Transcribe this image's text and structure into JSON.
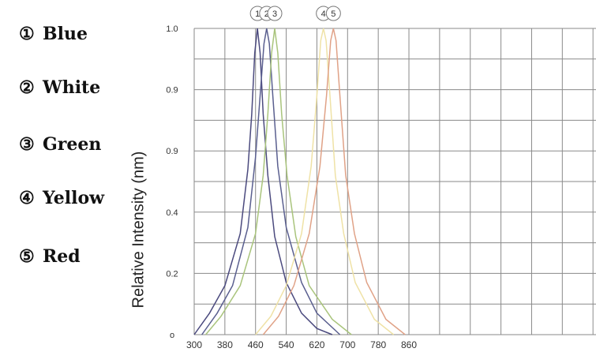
{
  "legend": {
    "items": [
      {
        "num": "①",
        "label": "Blue"
      },
      {
        "num": "②",
        "label": "White"
      },
      {
        "num": "③",
        "label": "Green"
      },
      {
        "num": "④",
        "label": "Yellow"
      },
      {
        "num": "⑤",
        "label": "Red"
      }
    ]
  },
  "chart_data": {
    "type": "line",
    "title": "",
    "xlabel": "",
    "ylabel": "Relative Intensity (nm)",
    "x_ticks": [
      "300",
      "380",
      "460",
      "540",
      "620",
      "700",
      "780",
      "860"
    ],
    "y_ticks": [
      "o",
      "0.2",
      "0.4",
      "0.9",
      "0.9",
      "1.0"
    ],
    "xlim": [
      300,
      860
    ],
    "grid": true,
    "series": [
      {
        "name": "1",
        "color": "#4b4a7e",
        "points": [
          [
            300,
            0.0
          ],
          [
            340,
            0.07
          ],
          [
            380,
            0.16
          ],
          [
            420,
            0.33
          ],
          [
            440,
            0.54
          ],
          [
            450,
            0.72
          ],
          [
            458,
            0.92
          ],
          [
            465,
            1.0
          ],
          [
            472,
            0.92
          ],
          [
            480,
            0.72
          ],
          [
            492,
            0.52
          ],
          [
            510,
            0.32
          ],
          [
            540,
            0.17
          ],
          [
            580,
            0.07
          ],
          [
            620,
            0.02
          ],
          [
            660,
            0.0
          ]
        ]
      },
      {
        "name": "2",
        "color": "#5a5f8f",
        "points": [
          [
            320,
            0.0
          ],
          [
            360,
            0.07
          ],
          [
            400,
            0.16
          ],
          [
            440,
            0.35
          ],
          [
            460,
            0.58
          ],
          [
            472,
            0.78
          ],
          [
            482,
            0.95
          ],
          [
            489,
            1.0
          ],
          [
            496,
            0.95
          ],
          [
            505,
            0.78
          ],
          [
            518,
            0.55
          ],
          [
            540,
            0.35
          ],
          [
            580,
            0.17
          ],
          [
            620,
            0.07
          ],
          [
            680,
            0.0
          ]
        ]
      },
      {
        "name": "3",
        "color": "#a9c47c",
        "points": [
          [
            330,
            0.0
          ],
          [
            370,
            0.06
          ],
          [
            420,
            0.16
          ],
          [
            460,
            0.33
          ],
          [
            480,
            0.52
          ],
          [
            492,
            0.72
          ],
          [
            502,
            0.92
          ],
          [
            510,
            1.0
          ],
          [
            518,
            0.92
          ],
          [
            528,
            0.72
          ],
          [
            542,
            0.52
          ],
          [
            565,
            0.32
          ],
          [
            600,
            0.16
          ],
          [
            660,
            0.05
          ],
          [
            710,
            0.0
          ]
        ]
      },
      {
        "name": "4",
        "color": "#efe2a6",
        "points": [
          [
            460,
            0.0
          ],
          [
            500,
            0.06
          ],
          [
            540,
            0.16
          ],
          [
            580,
            0.33
          ],
          [
            605,
            0.55
          ],
          [
            620,
            0.78
          ],
          [
            630,
            0.96
          ],
          [
            637,
            1.0
          ],
          [
            644,
            0.96
          ],
          [
            654,
            0.78
          ],
          [
            668,
            0.52
          ],
          [
            690,
            0.33
          ],
          [
            720,
            0.17
          ],
          [
            770,
            0.05
          ],
          [
            820,
            0.0
          ]
        ]
      },
      {
        "name": "5",
        "color": "#e0a287",
        "points": [
          [
            480,
            0.0
          ],
          [
            520,
            0.06
          ],
          [
            560,
            0.16
          ],
          [
            600,
            0.33
          ],
          [
            628,
            0.55
          ],
          [
            645,
            0.78
          ],
          [
            656,
            0.96
          ],
          [
            663,
            1.0
          ],
          [
            670,
            0.96
          ],
          [
            680,
            0.78
          ],
          [
            695,
            0.52
          ],
          [
            718,
            0.33
          ],
          [
            750,
            0.17
          ],
          [
            800,
            0.05
          ],
          [
            850,
            0.0
          ]
        ]
      }
    ]
  }
}
